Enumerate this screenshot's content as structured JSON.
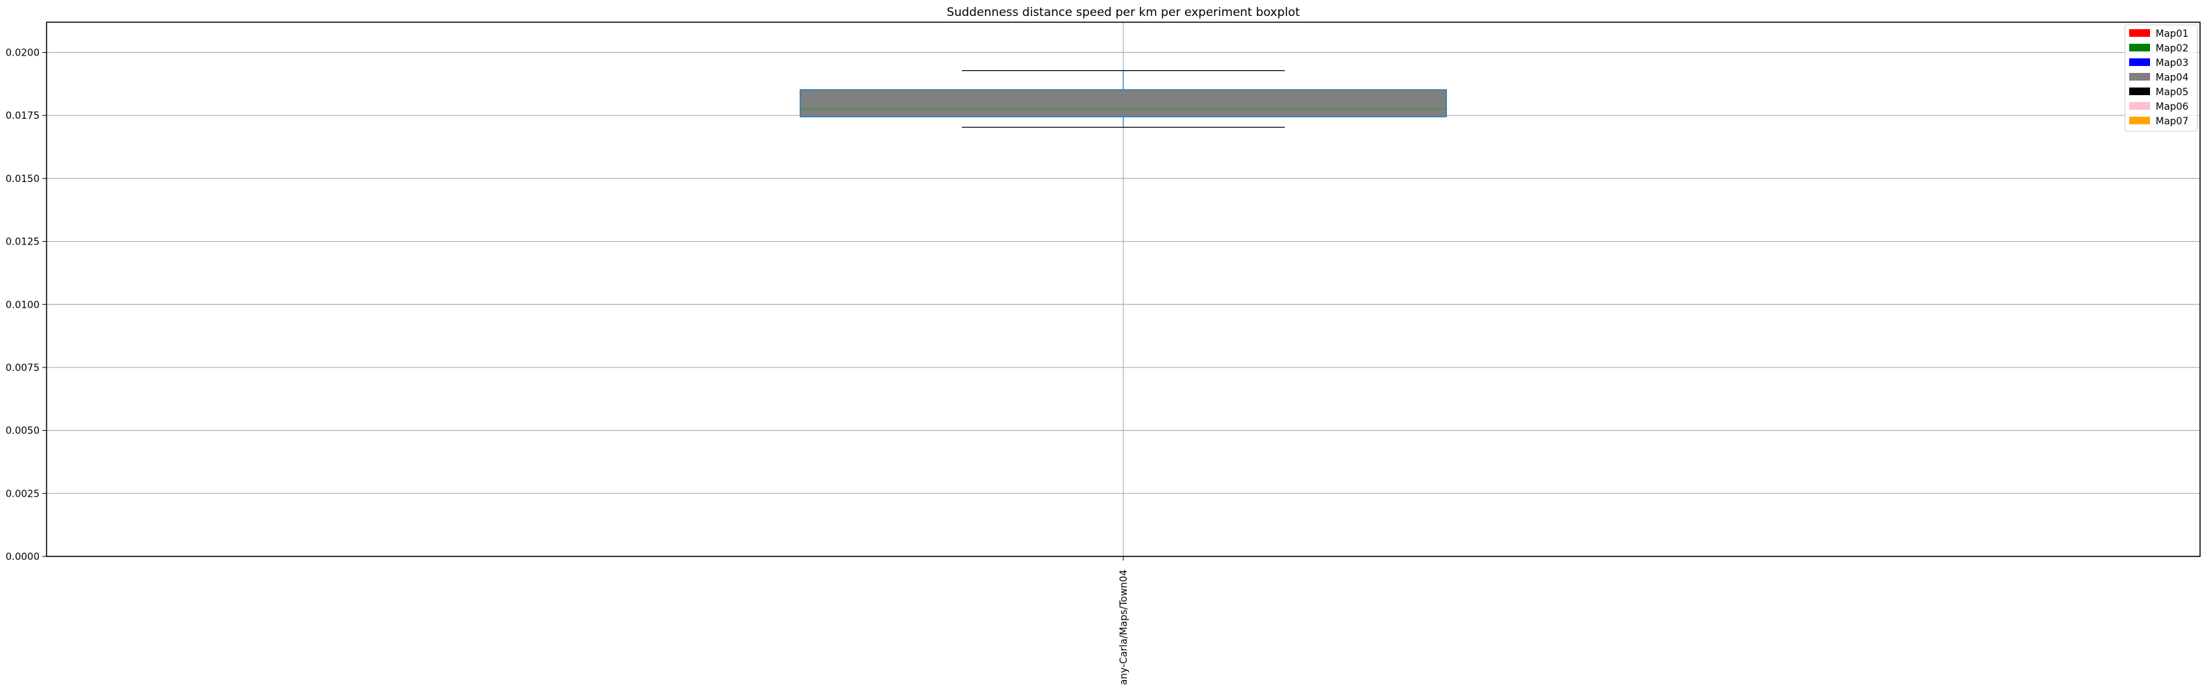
{
  "chart_data": {
    "type": "boxplot",
    "title": "Suddenness distance speed per km per experiment boxplot",
    "xlabel": "",
    "ylabel": "",
    "ylim": [
      0,
      0.0212
    ],
    "yticks": [
      "0.0000",
      "0.0025",
      "0.0050",
      "0.0075",
      "0.0100",
      "0.0125",
      "0.0150",
      "0.0175",
      "0.0200"
    ],
    "ytick_values": [
      0,
      0.0025,
      0.005,
      0.0075,
      0.01,
      0.0125,
      0.015,
      0.0175,
      0.02
    ],
    "grid": true,
    "categories": [
      "any-Carla/Maps/Town04"
    ],
    "boxes": [
      {
        "category": "any-Carla/Maps/Town04",
        "whisker_low": 0.01703,
        "q1": 0.01745,
        "median": 0.01775,
        "q3": 0.01852,
        "whisker_high": 0.01928,
        "fill": "#808080",
        "edge": "#1f77b4",
        "median_color": "#2ca02c"
      }
    ],
    "legend": {
      "placement": "top-right",
      "entries": [
        {
          "label": "Map01",
          "color": "#ff0000"
        },
        {
          "label": "Map02",
          "color": "#008000"
        },
        {
          "label": "Map03",
          "color": "#0000ff"
        },
        {
          "label": "Map04",
          "color": "#808080"
        },
        {
          "label": "Map05",
          "color": "#000000"
        },
        {
          "label": "Map06",
          "color": "#ffc0cb"
        },
        {
          "label": "Map07",
          "color": "#ffa500"
        }
      ]
    }
  }
}
